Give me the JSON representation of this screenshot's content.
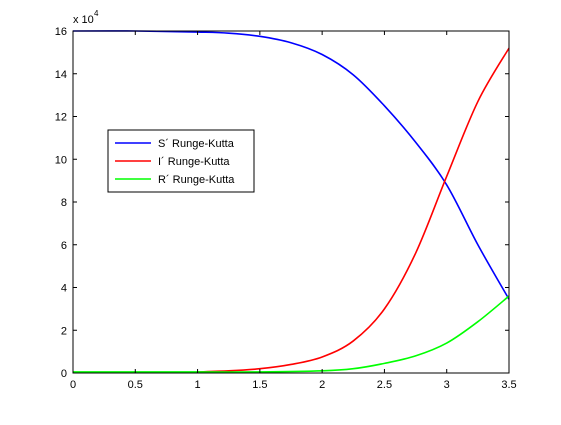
{
  "chart_data": {
    "type": "line",
    "title": "",
    "xlabel": "",
    "ylabel": "",
    "xlim": [
      0,
      3.5
    ],
    "ylim": [
      0,
      16
    ],
    "x_ticks": [
      0,
      0.5,
      1,
      1.5,
      2,
      2.5,
      3,
      3.5
    ],
    "x_tick_labels": [
      "0",
      "0.5",
      "1",
      "1.5",
      "2",
      "2.5",
      "3",
      "3.5"
    ],
    "y_ticks": [
      0,
      2,
      4,
      6,
      8,
      10,
      12,
      14,
      16
    ],
    "y_tick_labels": [
      "0",
      "2",
      "4",
      "6",
      "8",
      "10",
      "12",
      "14",
      "16"
    ],
    "y_multiplier": {
      "base": "x 10",
      "exponent": "4"
    },
    "grid": false,
    "legend_position": "center-left",
    "series": [
      {
        "name": "S´ Runge-Kutta",
        "color": "#0000ff",
        "x": [
          0,
          0.5,
          1,
          1.25,
          1.5,
          1.75,
          2,
          2.25,
          2.5,
          2.75,
          3,
          3.25,
          3.5
        ],
        "y": [
          16,
          16,
          15.95,
          15.9,
          15.75,
          15.45,
          14.9,
          13.95,
          12.5,
          10.8,
          8.8,
          6.0,
          3.45
        ]
      },
      {
        "name": "I´ Runge-Kutta",
        "color": "#ff0000",
        "x": [
          1,
          1.25,
          1.5,
          1.75,
          2,
          2.25,
          2.5,
          2.75,
          3,
          3.25,
          3.5
        ],
        "y": [
          0.05,
          0.1,
          0.2,
          0.4,
          0.75,
          1.5,
          3.0,
          5.6,
          9.2,
          12.7,
          15.2
        ]
      },
      {
        "name": "R´ Runge-Kutta",
        "color": "#00ff00",
        "x": [
          0,
          0.5,
          1,
          1.5,
          2,
          2.25,
          2.5,
          2.75,
          3,
          3.25,
          3.5
        ],
        "y": [
          0.05,
          0.05,
          0.05,
          0.05,
          0.1,
          0.2,
          0.45,
          0.8,
          1.4,
          2.4,
          3.6
        ]
      }
    ]
  }
}
